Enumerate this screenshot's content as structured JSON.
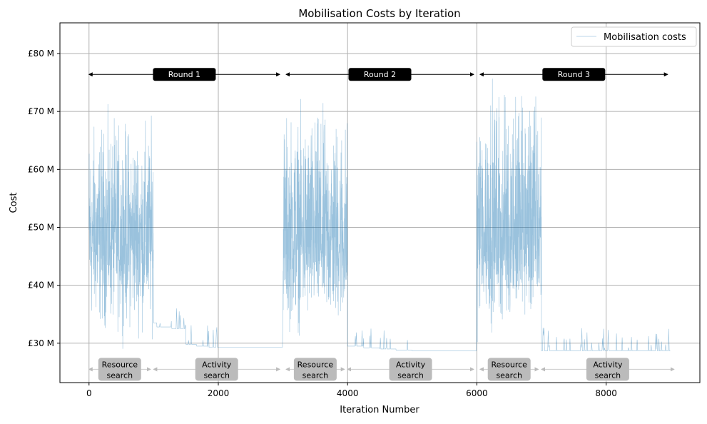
{
  "chart_data": {
    "type": "line",
    "title": "Mobilisation Costs by Iteration",
    "xlabel": "Iteration Number",
    "ylabel": "Cost",
    "xlim": [
      -450,
      9450
    ],
    "ylim": [
      23.2,
      85.3
    ],
    "xticks": [
      0,
      2000,
      4000,
      6000,
      8000
    ],
    "xtick_labels": [
      "0",
      "2000",
      "4000",
      "6000",
      "8000"
    ],
    "yticks": [
      30,
      40,
      50,
      60,
      70,
      80
    ],
    "ytick_labels": [
      "£30 M",
      "£40 M",
      "£50 M",
      "£60 M",
      "£70 M",
      "£80 M"
    ],
    "grid": true,
    "legend": {
      "position": "top-right",
      "entries": [
        "Mobilisation costs"
      ]
    },
    "series": [
      {
        "name": "Mobilisation costs",
        "color": "#1f77b4",
        "segments": [
          {
            "x": [
              0,
              1000
            ],
            "kind": "noisy",
            "mean": 48,
            "min": 28,
            "max": 74
          },
          {
            "x": [
              1000,
              1050
            ],
            "kind": "steps",
            "levels": [
              33.5
            ]
          },
          {
            "x": [
              1050,
              1500
            ],
            "kind": "steps",
            "levels": [
              32.8,
              32.5
            ]
          },
          {
            "x": [
              1500,
              2000
            ],
            "kind": "steps",
            "levels": [
              29.8,
              29.5,
              29.3
            ]
          },
          {
            "x": [
              2000,
              3000
            ],
            "kind": "steps",
            "levels": [
              29.3
            ]
          },
          {
            "x": [
              3000,
              4000
            ],
            "kind": "noisy",
            "mean": 48,
            "min": 28,
            "max": 76
          },
          {
            "x": [
              4000,
              5000
            ],
            "kind": "steps",
            "levels": [
              29.5,
              29.2,
              29.0,
              28.8
            ]
          },
          {
            "x": [
              5000,
              6000
            ],
            "kind": "steps",
            "levels": [
              28.7
            ]
          },
          {
            "x": [
              6000,
              7000
            ],
            "kind": "noisy",
            "mean": 49,
            "min": 28,
            "max": 82
          },
          {
            "x": [
              7000,
              8000
            ],
            "kind": "steps",
            "levels": [
              28.7
            ]
          },
          {
            "x": [
              8000,
              9000
            ],
            "kind": "steps",
            "levels": [
              28.7
            ]
          }
        ]
      }
    ],
    "annotations": {
      "rounds": [
        {
          "label": "Round 1",
          "x": [
            0,
            2950
          ]
        },
        {
          "label": "Round 2",
          "x": [
            3050,
            5950
          ]
        },
        {
          "label": "Round 3",
          "x": [
            6050,
            8950
          ]
        }
      ],
      "round_y": 76.4,
      "phases": [
        {
          "label1": "Resource",
          "label2": "search",
          "x": [
            0,
            950
          ]
        },
        {
          "label1": "Activity",
          "label2": "search",
          "x": [
            1000,
            2950
          ]
        },
        {
          "label1": "Resource",
          "label2": "search",
          "x": [
            3050,
            3950
          ]
        },
        {
          "label1": "Activity",
          "label2": "search",
          "x": [
            4000,
            5950
          ]
        },
        {
          "label1": "Resource",
          "label2": "search",
          "x": [
            6050,
            6950
          ]
        },
        {
          "label1": "Activity",
          "label2": "search",
          "x": [
            7000,
            9050
          ]
        }
      ],
      "phase_y": 25.5
    }
  }
}
